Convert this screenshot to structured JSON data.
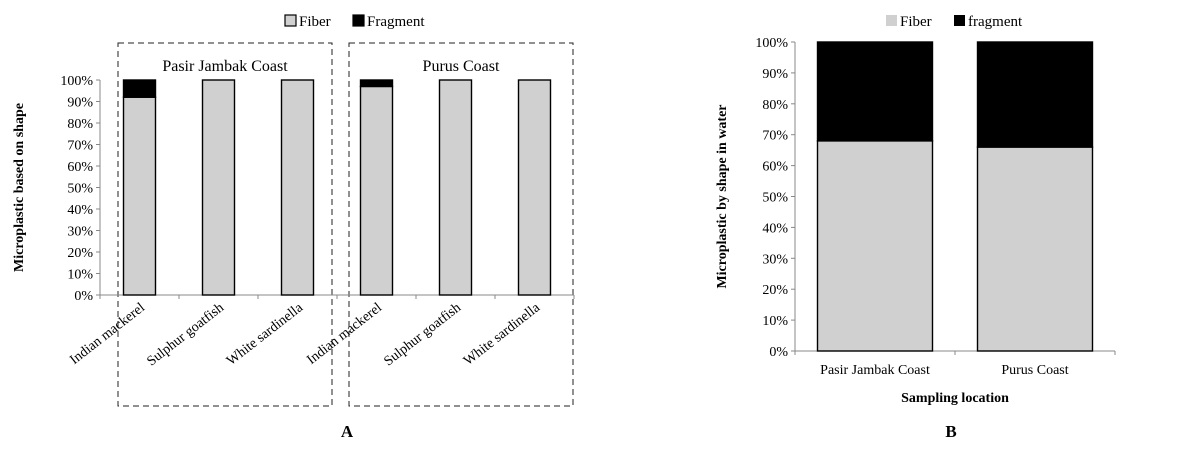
{
  "chart_data": [
    {
      "panel": "A",
      "type": "bar",
      "stacked": true,
      "ylabel": "Microplastic based on shape",
      "xlabel": "",
      "yticks": [
        "0%",
        "10%",
        "20%",
        "30%",
        "40%",
        "50%",
        "60%",
        "70%",
        "80%",
        "90%",
        "100%"
      ],
      "ylim": [
        0,
        100
      ],
      "legend": [
        "Fiber",
        "Fragment"
      ],
      "legend_position": "top",
      "groups": [
        {
          "label": "Pasir Jambak Coast",
          "categories": [
            "Indian mackerel",
            "Sulphur goatfish",
            "White sardinella"
          ]
        },
        {
          "label": "Purus Coast",
          "categories": [
            "Indian mackerel",
            "Sulphur goatfish",
            "White sardinella"
          ]
        }
      ],
      "categories": [
        "Indian mackerel",
        "Sulphur goatfish",
        "White sardinella",
        "Indian mackerel",
        "Sulphur goatfish",
        "White sardinella"
      ],
      "series": [
        {
          "name": "Fiber",
          "color": "#d0d0d0",
          "values": [
            92,
            100,
            100,
            97,
            100,
            100
          ]
        },
        {
          "name": "Fragment",
          "color": "#000000",
          "values": [
            8,
            0,
            0,
            3,
            0,
            0
          ]
        }
      ]
    },
    {
      "panel": "B",
      "type": "bar",
      "stacked": true,
      "ylabel": "Microplastic by shape  in water",
      "xlabel": "Sampling location",
      "yticks": [
        "0%",
        "10%",
        "20%",
        "30%",
        "40%",
        "50%",
        "60%",
        "70%",
        "80%",
        "90%",
        "100%"
      ],
      "ylim": [
        0,
        100
      ],
      "legend": [
        "Fiber",
        "fragment"
      ],
      "legend_position": "top",
      "categories": [
        "Pasir Jambak Coast",
        "Purus Coast"
      ],
      "series": [
        {
          "name": "Fiber",
          "color": "#d0d0d0",
          "values": [
            68,
            66
          ]
        },
        {
          "name": "fragment",
          "color": "#000000",
          "values": [
            32,
            34
          ]
        }
      ]
    }
  ],
  "panel_letters": [
    "A",
    "B"
  ]
}
